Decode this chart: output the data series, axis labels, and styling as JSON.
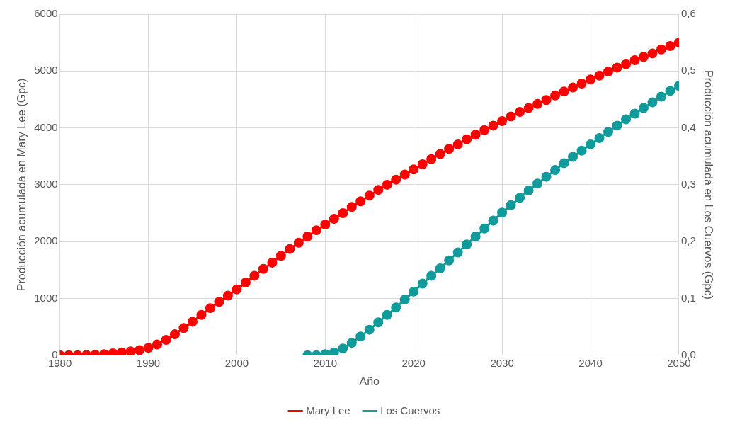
{
  "chart_data": {
    "type": "line",
    "xlabel": "Año",
    "ylabel": "Producción acumulada en Mary Lee (Gpc)",
    "y2label": "Producción acumulada en Los Cuervos (Gpc)",
    "xlim": [
      1980,
      2050
    ],
    "xticks": [
      1980,
      1990,
      2000,
      2010,
      2020,
      2030,
      2040,
      2050
    ],
    "ylim": [
      0,
      6000
    ],
    "yticks": [
      0,
      1000,
      2000,
      3000,
      4000,
      5000,
      6000
    ],
    "y2lim": [
      0,
      0.6
    ],
    "y2ticks": [
      {
        "value": 0,
        "label": "0,0"
      },
      {
        "value": 0.1,
        "label": "0,1"
      },
      {
        "value": 0.2,
        "label": "0,2"
      },
      {
        "value": 0.3,
        "label": "0,3"
      },
      {
        "value": 0.4,
        "label": "0,4"
      },
      {
        "value": 0.5,
        "label": "0,5"
      },
      {
        "value": 0.6,
        "label": "0,6"
      }
    ],
    "grid": true,
    "legend": "bottom",
    "marker": "circle",
    "line_style": "solid",
    "series": [
      {
        "name": "Mary Lee",
        "color": "#ff0000",
        "x": [
          1980,
          1981,
          1982,
          1983,
          1984,
          1985,
          1986,
          1987,
          1988,
          1989,
          1990,
          1991,
          1992,
          1993,
          1994,
          1995,
          1996,
          1997,
          1998,
          1999,
          2000,
          2001,
          2002,
          2003,
          2004,
          2005,
          2006,
          2007,
          2008,
          2009,
          2010,
          2011,
          2012,
          2013,
          2014,
          2015,
          2016,
          2017,
          2018,
          2019,
          2020,
          2021,
          2022,
          2023,
          2024,
          2025,
          2026,
          2027,
          2028,
          2029,
          2030,
          2031,
          2032,
          2033,
          2034,
          2035,
          2036,
          2037,
          2038,
          2039,
          2040,
          2041,
          2042,
          2043,
          2044,
          2045,
          2046,
          2047,
          2048,
          2049,
          2050
        ],
        "values": [
          0,
          0,
          0,
          5,
          10,
          20,
          35,
          50,
          70,
          90,
          130,
          190,
          270,
          370,
          480,
          590,
          710,
          830,
          940,
          1050,
          1160,
          1280,
          1400,
          1520,
          1630,
          1750,
          1870,
          1980,
          2090,
          2200,
          2300,
          2400,
          2500,
          2610,
          2710,
          2810,
          2910,
          3000,
          3090,
          3180,
          3270,
          3360,
          3450,
          3540,
          3630,
          3710,
          3800,
          3880,
          3960,
          4040,
          4120,
          4200,
          4280,
          4350,
          4420,
          4490,
          4570,
          4640,
          4710,
          4780,
          4850,
          4920,
          4990,
          5060,
          5120,
          5190,
          5250,
          5310,
          5380,
          5440,
          5500
        ]
      },
      {
        "name": "Los Cuervos",
        "color": "#0f9b9b",
        "axis": "y2",
        "x": [
          2008,
          2009,
          2010,
          2011,
          2012,
          2013,
          2014,
          2015,
          2016,
          2017,
          2018,
          2019,
          2020,
          2021,
          2022,
          2023,
          2024,
          2025,
          2026,
          2027,
          2028,
          2029,
          2030,
          2031,
          2032,
          2033,
          2034,
          2035,
          2036,
          2037,
          2038,
          2039,
          2040,
          2041,
          2042,
          2043,
          2044,
          2045,
          2046,
          2047,
          2048,
          2049,
          2050
        ],
        "values": [
          0,
          0,
          0.002,
          0.005,
          0.012,
          0.022,
          0.033,
          0.045,
          0.058,
          0.071,
          0.084,
          0.098,
          0.112,
          0.126,
          0.14,
          0.153,
          0.167,
          0.181,
          0.195,
          0.209,
          0.223,
          0.237,
          0.251,
          0.264,
          0.277,
          0.29,
          0.302,
          0.314,
          0.326,
          0.338,
          0.349,
          0.36,
          0.371,
          0.382,
          0.393,
          0.404,
          0.415,
          0.425,
          0.435,
          0.445,
          0.455,
          0.465,
          0.474
        ]
      }
    ]
  }
}
